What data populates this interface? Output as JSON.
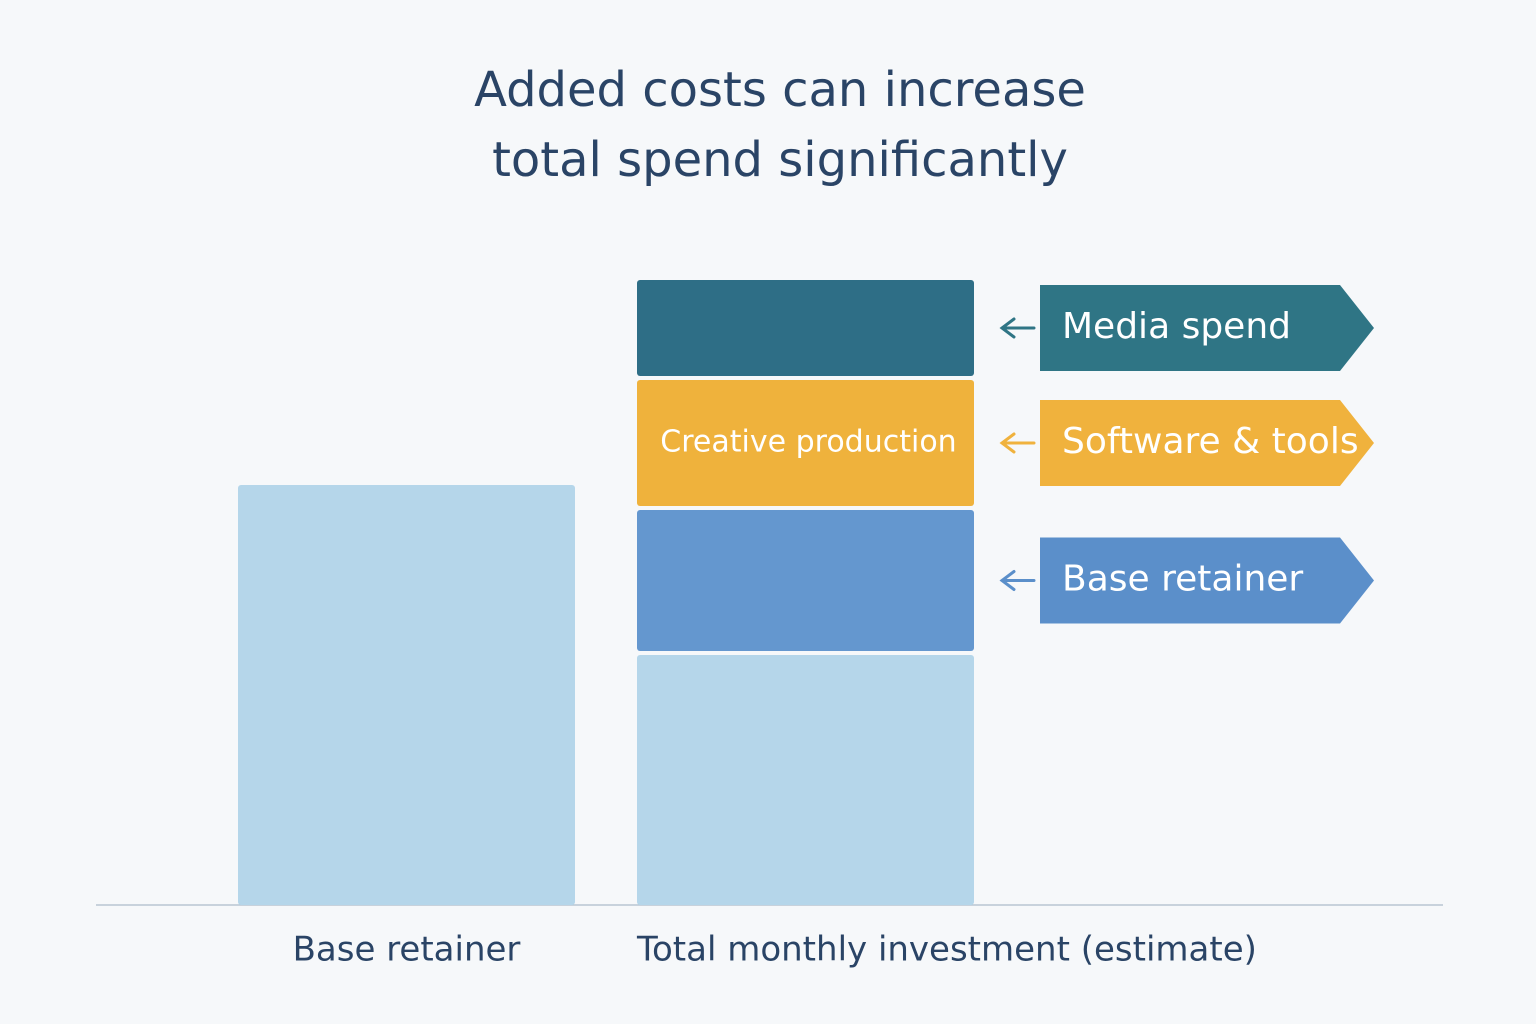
{
  "chart_data": {
    "type": "stacked-bar",
    "title": [
      "Added costs can increase",
      "total spend significantly"
    ],
    "bars": [
      {
        "label": "Base retainer",
        "segments": [
          {
            "value": 42,
            "color": "#b5d6ea"
          }
        ]
      },
      {
        "label": "Total monthly investment (estimate)",
        "segments": [
          {
            "value": 25,
            "color": "#b5d6ea"
          },
          {
            "value": 14.5,
            "color": "#6497cf",
            "callout": "Base retainer",
            "callout_color": "#5b8fca"
          },
          {
            "value": 13,
            "color": "#efb23c",
            "label": "Creative production",
            "callout": "Software & tools",
            "callout_color": "#f0b23d"
          },
          {
            "value": 10,
            "color": "#2e6e86",
            "callout": "Media spend",
            "callout_color": "#2f7585"
          }
        ]
      }
    ]
  }
}
